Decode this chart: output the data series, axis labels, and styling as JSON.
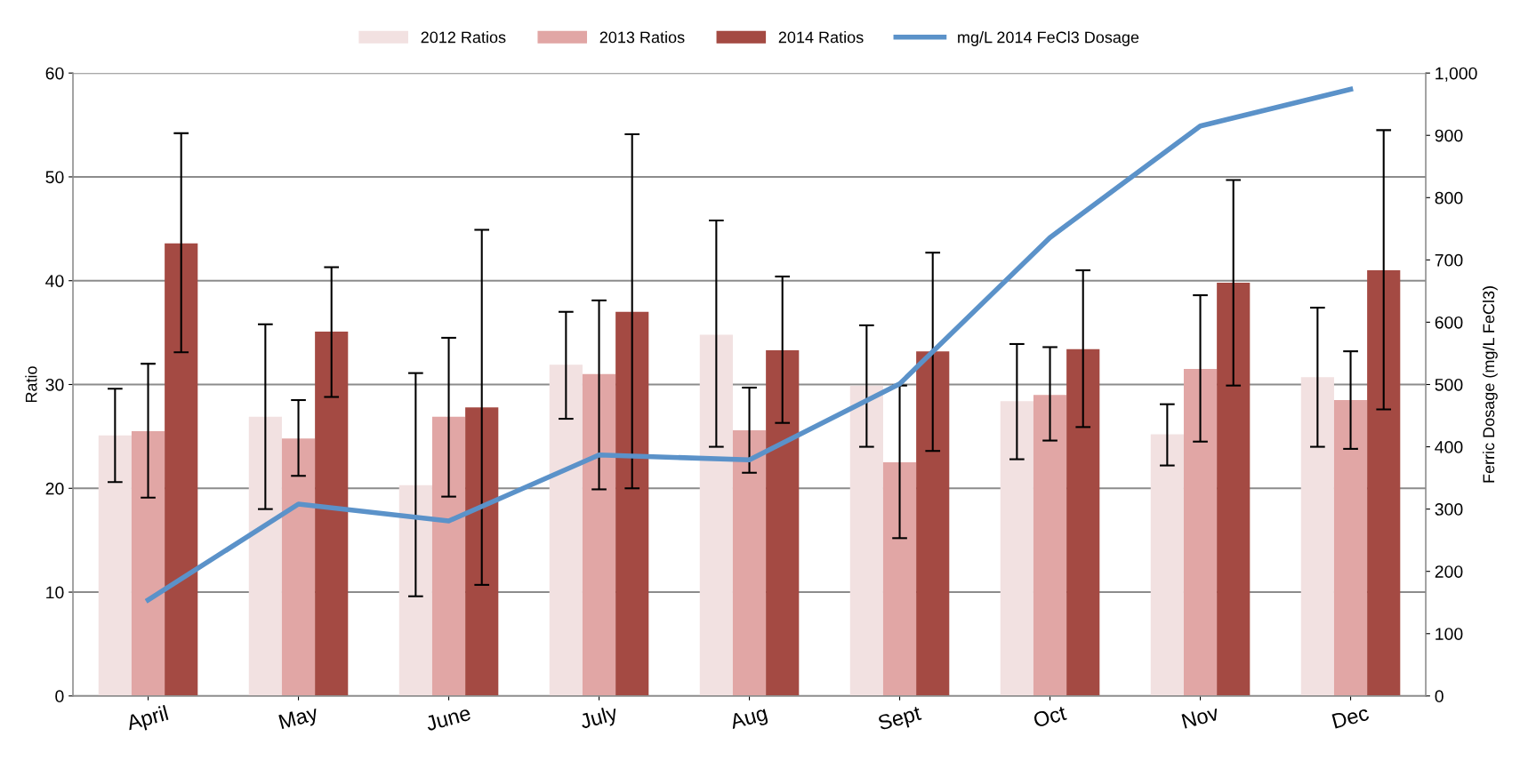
{
  "chart_data": {
    "type": "bar",
    "categories": [
      "April",
      "May",
      "June",
      "July",
      "Aug",
      "Sept",
      "Oct",
      "Nov",
      "Dec"
    ],
    "ylabel": "Ratio",
    "y2label": "Ferric Dosage (mg/L FeCl3)",
    "ylim": [
      0,
      60
    ],
    "yticks": [
      0,
      10,
      20,
      30,
      40,
      50,
      60
    ],
    "y2lim": [
      0,
      1000
    ],
    "y2ticks": [
      0,
      100,
      200,
      300,
      400,
      500,
      600,
      700,
      800,
      900,
      {
        "value": 1000,
        "label": "1,000"
      }
    ],
    "grid": "y",
    "legend": "top",
    "series": [
      {
        "name": "2012 Ratios",
        "color": "#f2e1e1",
        "values": [
          25.1,
          26.9,
          20.3,
          31.9,
          34.8,
          29.9,
          28.4,
          25.2,
          30.7
        ],
        "errors": [
          [
            20.6,
            29.6
          ],
          [
            18.0,
            35.8
          ],
          [
            9.6,
            31.1
          ],
          [
            26.7,
            37.0
          ],
          [
            24.0,
            45.8
          ],
          [
            24.0,
            35.7
          ],
          [
            22.8,
            33.9
          ],
          [
            22.2,
            28.1
          ],
          [
            24.0,
            37.4
          ]
        ]
      },
      {
        "name": "2013 Ratios",
        "color": "#e1a6a5",
        "values": [
          25.5,
          24.8,
          26.9,
          31.0,
          25.6,
          22.5,
          29.0,
          31.5,
          28.5
        ],
        "errors": [
          [
            19.1,
            32.0
          ],
          [
            21.2,
            28.5
          ],
          [
            19.2,
            34.5
          ],
          [
            19.9,
            38.1
          ],
          [
            21.5,
            29.7
          ],
          [
            15.2,
            29.9
          ],
          [
            24.6,
            33.6
          ],
          [
            24.5,
            38.6
          ],
          [
            23.8,
            33.2
          ]
        ]
      },
      {
        "name": "2014 Ratios",
        "color": "#a44a43",
        "values": [
          43.6,
          35.1,
          27.8,
          37.0,
          33.3,
          33.2,
          33.4,
          39.8,
          41.0
        ],
        "errors": [
          [
            33.1,
            54.2
          ],
          [
            28.8,
            41.3
          ],
          [
            10.7,
            44.9
          ],
          [
            20.0,
            54.1
          ],
          [
            26.3,
            40.4
          ],
          [
            23.6,
            42.7
          ],
          [
            25.9,
            41.0
          ],
          [
            29.9,
            49.7
          ],
          [
            27.6,
            54.5
          ]
        ]
      },
      {
        "name": "mg/L 2014 FeCl3 Dosage",
        "type": "line",
        "axis": "y2",
        "color": "#5b92c9",
        "values": [
          154,
          308,
          281,
          387,
          379,
          501,
          736,
          915,
          974
        ]
      }
    ]
  }
}
